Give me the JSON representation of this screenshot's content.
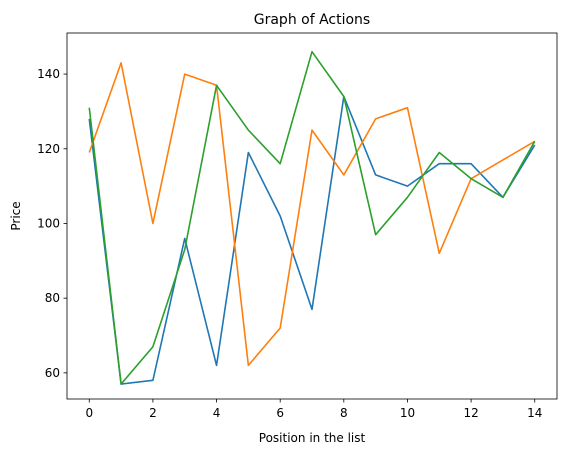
{
  "chart_data": {
    "type": "line",
    "title": "Graph of Actions",
    "xlabel": "Position in the list",
    "ylabel": "Price",
    "x": [
      0,
      1,
      2,
      3,
      4,
      5,
      6,
      7,
      8,
      9,
      10,
      11,
      12,
      13,
      14
    ],
    "xlim": [
      -0.7,
      14.7
    ],
    "ylim": [
      53,
      151
    ],
    "xticks": [
      0,
      2,
      4,
      6,
      8,
      10,
      12,
      14
    ],
    "yticks": [
      60,
      80,
      100,
      120,
      140
    ],
    "grid": false,
    "series": [
      {
        "color": "#1f77b4",
        "values": [
          128,
          57,
          58,
          96,
          62,
          119,
          102,
          77,
          134,
          113,
          110,
          116,
          116,
          107,
          121
        ]
      },
      {
        "color": "#ff7f0e",
        "values": [
          119,
          143,
          100,
          140,
          137,
          62,
          72,
          125,
          113,
          128,
          131,
          92,
          112,
          117,
          122
        ]
      },
      {
        "color": "#2ca02c",
        "values": [
          131,
          57,
          67,
          93,
          137,
          125,
          116,
          146,
          134,
          97,
          107,
          119,
          112,
          107,
          122
        ]
      }
    ]
  }
}
